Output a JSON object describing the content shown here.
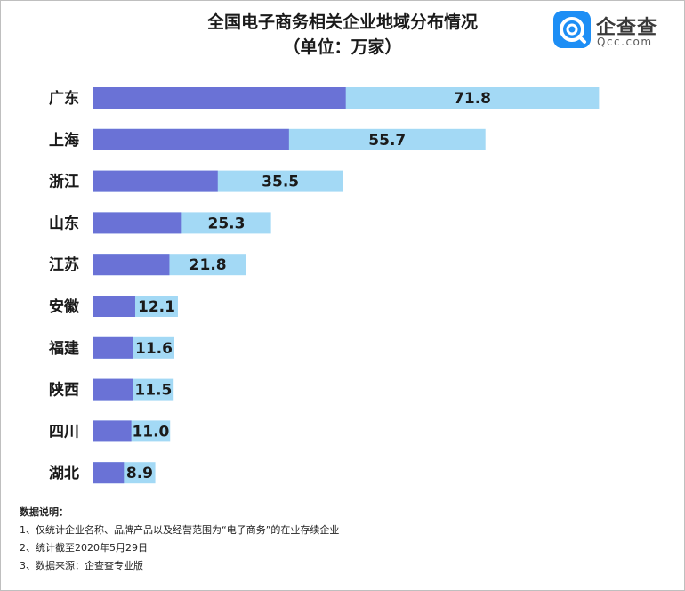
{
  "title": "全国电子商务相关企业地域分布情况",
  "subtitle": "（单位：万家）",
  "logo": {
    "name": "企查查",
    "domain": "Qcc.com"
  },
  "colors": {
    "bar_fill": "#a3d9f5",
    "bar_dark": "#6a72d6",
    "brand": "#1d8ef5"
  },
  "chart_data": {
    "type": "bar",
    "orientation": "horizontal",
    "title": "全国电子商务相关企业地域分布情况",
    "subtitle": "（单位：万家）",
    "categories": [
      "广东",
      "上海",
      "浙江",
      "山东",
      "江苏",
      "安徽",
      "福建",
      "陕西",
      "四川",
      "湖北"
    ],
    "values": [
      71.8,
      55.7,
      35.5,
      25.3,
      21.8,
      12.1,
      11.6,
      11.5,
      11.0,
      8.9
    ],
    "value_labels": [
      "71.8",
      "55.7",
      "35.5",
      "25.3",
      "21.8",
      "12.1",
      "11.6",
      "11.5",
      "11.0",
      "8.9"
    ],
    "xlim": [
      0,
      80
    ],
    "grid": false,
    "legend": "none"
  },
  "notes": {
    "heading": "数据说明：",
    "items": [
      "1、仅统计企业名称、品牌产品以及经营范围为“电子商务”的在业存续企业",
      "2、统计截至2020年5月29日",
      "3、数据来源：企查查专业版"
    ]
  }
}
